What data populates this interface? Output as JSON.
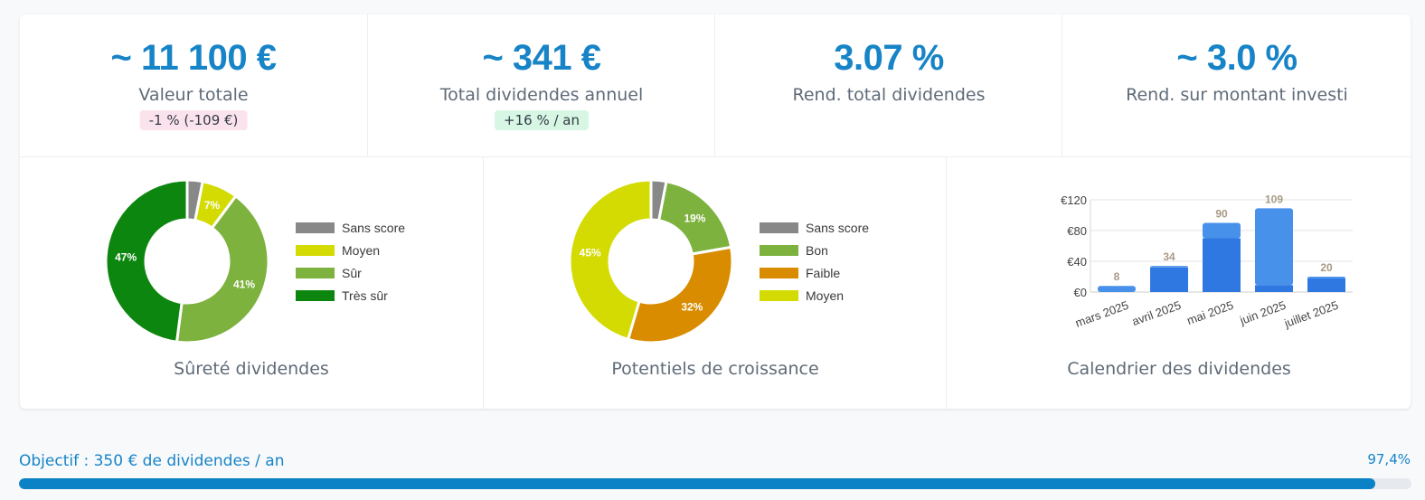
{
  "stats": [
    {
      "value": "~ 11 100 €",
      "label": "Valeur totale",
      "badge": "-1 % (-109 €)",
      "badge_bg": "#fbe3ee"
    },
    {
      "value": "~ 341 €",
      "label": "Total dividendes annuel",
      "badge": "+16 % / an",
      "badge_bg": "#d7f6e4"
    },
    {
      "value": "3.07 %",
      "label": "Rend. total dividendes"
    },
    {
      "value": "~ 3.0 %",
      "label": "Rend. sur montant investi"
    }
  ],
  "panels": {
    "safety_title": "Sûreté dividendes",
    "growth_title": "Potentiels de croissance",
    "calendar_title": "Calendrier des dividendes"
  },
  "goal": {
    "label": "Objectif : 350 € de dividendes / an",
    "percent_text": "97,4%",
    "fraction": 0.974
  },
  "chart_data": [
    {
      "type": "pie",
      "title": "Sûreté dividendes",
      "donut": true,
      "legend": "right",
      "slices": [
        {
          "label": "Sans score",
          "value": 3,
          "color": "#888888",
          "show_label": ""
        },
        {
          "label": "Moyen",
          "value": 7,
          "color": "#d3db02",
          "show_label": "7%"
        },
        {
          "label": "Sûr",
          "value": 41,
          "color": "#7db23f",
          "show_label": "41%"
        },
        {
          "label": "Très sûr",
          "value": 47,
          "color": "#0d860f",
          "show_label": "47%"
        }
      ]
    },
    {
      "type": "pie",
      "title": "Potentiels de croissance",
      "donut": true,
      "legend": "right",
      "slices": [
        {
          "label": "Sans score",
          "value": 3,
          "color": "#888888",
          "show_label": ""
        },
        {
          "label": "Bon",
          "value": 19,
          "color": "#7db23f",
          "show_label": "19%"
        },
        {
          "label": "Faible",
          "value": 32,
          "color": "#d98c00",
          "show_label": "32%"
        },
        {
          "label": "Moyen",
          "value": 45,
          "color": "#d3db02",
          "show_label": "45%"
        }
      ]
    },
    {
      "type": "bar",
      "stacked": true,
      "title": "Calendrier des dividendes",
      "categories": [
        "mars 2025",
        "avril 2025",
        "mai 2025",
        "juin 2025",
        "juillet 2025"
      ],
      "series": [
        {
          "values": [
            0,
            32,
            70,
            9,
            18
          ],
          "color": "#2f78e2"
        },
        {
          "values": [
            8,
            2,
            20,
            100,
            2
          ],
          "color": "#4891ea"
        }
      ],
      "totals": [
        "8",
        "34",
        "90",
        "109",
        "20"
      ],
      "yticks": [
        "€0",
        "€40",
        "€80",
        "€120"
      ],
      "ytick_values": [
        0,
        40,
        80,
        120
      ],
      "ylim": [
        0,
        120
      ],
      "grid": true
    }
  ]
}
